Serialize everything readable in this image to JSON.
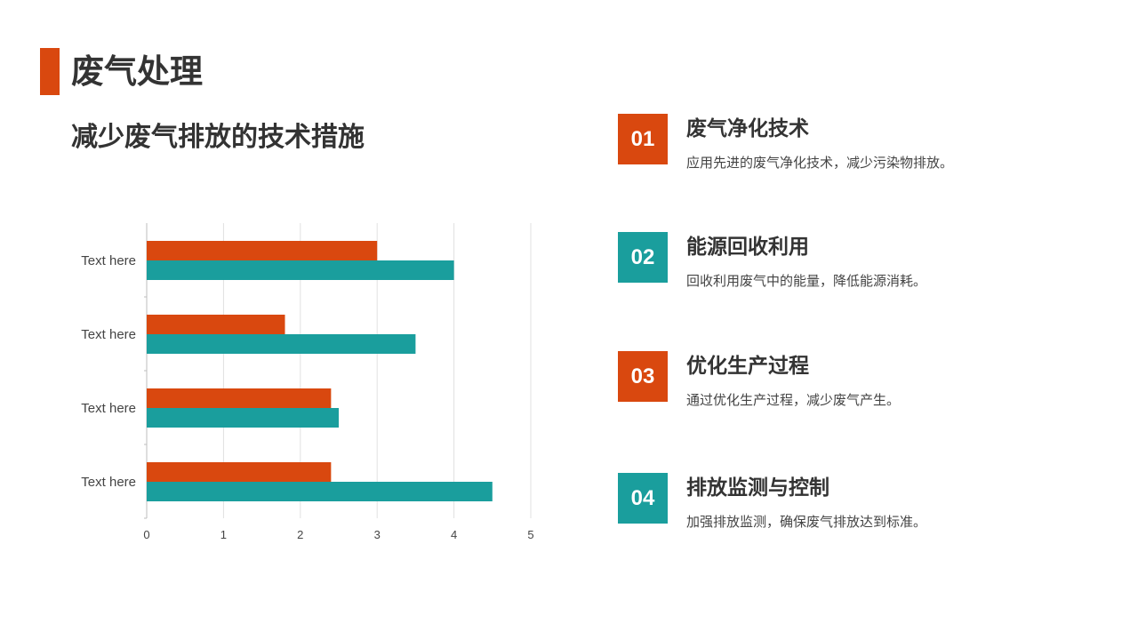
{
  "page": {
    "title": "废气处理",
    "subtitle": "减少废气排放的技术措施"
  },
  "colors": {
    "accent": "#d9480f",
    "teal": "#1a9e9d",
    "text": "#333333",
    "grid": "#e0e0e0"
  },
  "chart_data": {
    "type": "bar",
    "orientation": "horizontal",
    "categories": [
      "Text here",
      "Text here",
      "Text here",
      "Text here"
    ],
    "series": [
      {
        "color": "#d9480f",
        "values": [
          3,
          1.8,
          2.4,
          2.4
        ]
      },
      {
        "color": "#1a9e9d",
        "values": [
          4,
          3.5,
          2.5,
          4.5
        ]
      }
    ],
    "xlim": [
      0,
      5
    ],
    "xticks": [
      "0",
      "1",
      "2",
      "3",
      "4",
      "5"
    ],
    "grid": "vertical",
    "legend": "none"
  },
  "points": [
    {
      "number": "01",
      "color": "#d9480f",
      "heading": "废气净化技术",
      "desc": "应用先进的废气净化技术，减少污染物排放。"
    },
    {
      "number": "02",
      "color": "#1a9e9d",
      "heading": "能源回收利用",
      "desc": "回收利用废气中的能量，降低能源消耗。"
    },
    {
      "number": "03",
      "color": "#d9480f",
      "heading": "优化生产过程",
      "desc": "通过优化生产过程，减少废气产生。"
    },
    {
      "number": "04",
      "color": "#1a9e9d",
      "heading": "排放监测与控制",
      "desc": "加强排放监测，确保废气排放达到标准。"
    }
  ]
}
